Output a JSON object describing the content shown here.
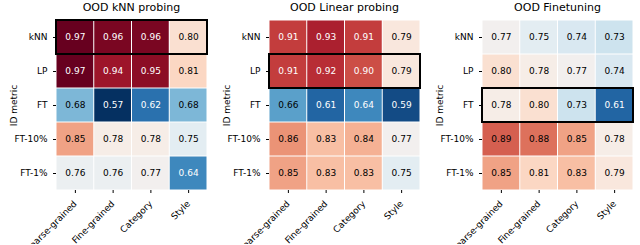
{
  "chart_data": [
    {
      "type": "heatmap",
      "title": "OOD kNN probing",
      "y_label": "ID metric",
      "x_categories": [
        "Coarse-grained",
        "Fine-grained",
        "Category",
        "Style"
      ],
      "y_categories": [
        "kNN",
        "LP",
        "FT",
        "FT-10%",
        "FT-1%"
      ],
      "cells": [
        [
          0.97,
          0.96,
          0.96,
          0.8
        ],
        [
          0.97,
          0.94,
          0.95,
          0.81
        ],
        [
          0.68,
          0.57,
          0.62,
          0.68
        ],
        [
          0.85,
          0.78,
          0.78,
          0.75
        ],
        [
          0.76,
          0.76,
          0.77,
          0.64
        ]
      ],
      "value_labels": [
        [
          "0.97",
          "0.96",
          "0.96",
          "0.80"
        ],
        [
          "0.97",
          "0.94",
          "0.95",
          "0.81"
        ],
        [
          "0.68",
          "0.57",
          "0.62",
          "0.68"
        ],
        [
          "0.85",
          "0.78",
          "0.78",
          "0.75"
        ],
        [
          "0.76",
          "0.76",
          "0.77",
          "0.64"
        ]
      ],
      "highlight_row": "kNN",
      "data_labels": true
    },
    {
      "type": "heatmap",
      "title": "OOD Linear probing",
      "y_label": "ID metric",
      "x_categories": [
        "Coarse-grained",
        "Fine-grained",
        "Category",
        "Style"
      ],
      "y_categories": [
        "kNN",
        "LP",
        "FT",
        "FT-10%",
        "FT-1%"
      ],
      "cells": [
        [
          0.91,
          0.93,
          0.91,
          0.79
        ],
        [
          0.91,
          0.92,
          0.9,
          0.79
        ],
        [
          0.66,
          0.61,
          0.64,
          0.59
        ],
        [
          0.86,
          0.83,
          0.84,
          0.77
        ],
        [
          0.85,
          0.83,
          0.83,
          0.75
        ]
      ],
      "value_labels": [
        [
          "0.91",
          "0.93",
          "0.91",
          "0.79"
        ],
        [
          "0.91",
          "0.92",
          "0.90",
          "0.79"
        ],
        [
          "0.66",
          "0.61",
          "0.64",
          "0.59"
        ],
        [
          "0.86",
          "0.83",
          "0.84",
          "0.77"
        ],
        [
          "0.85",
          "0.83",
          "0.83",
          "0.75"
        ]
      ],
      "highlight_row": "LP",
      "data_labels": true
    },
    {
      "type": "heatmap",
      "title": "OOD Finetuning",
      "y_label": "ID metric",
      "x_categories": [
        "Coarse-grained",
        "Fine-grained",
        "Category",
        "Style"
      ],
      "y_categories": [
        "kNN",
        "LP",
        "FT",
        "FT-10%",
        "FT-1%"
      ],
      "cells": [
        [
          0.77,
          0.75,
          0.74,
          0.73
        ],
        [
          0.8,
          0.78,
          0.77,
          0.74
        ],
        [
          0.78,
          0.8,
          0.73,
          0.61
        ],
        [
          0.89,
          0.88,
          0.85,
          0.78
        ],
        [
          0.85,
          0.81,
          0.83,
          0.79
        ]
      ],
      "value_labels": [
        [
          "0.77",
          "0.75",
          "0.74",
          "0.73"
        ],
        [
          "0.80",
          "0.78",
          "0.77",
          "0.74"
        ],
        [
          "0.78",
          "0.80",
          "0.73",
          "0.61"
        ],
        [
          "0.89",
          "0.88",
          "0.85",
          "0.78"
        ],
        [
          "0.85",
          "0.81",
          "0.83",
          "0.79"
        ]
      ],
      "highlight_row": "FT",
      "data_labels": true
    }
  ]
}
